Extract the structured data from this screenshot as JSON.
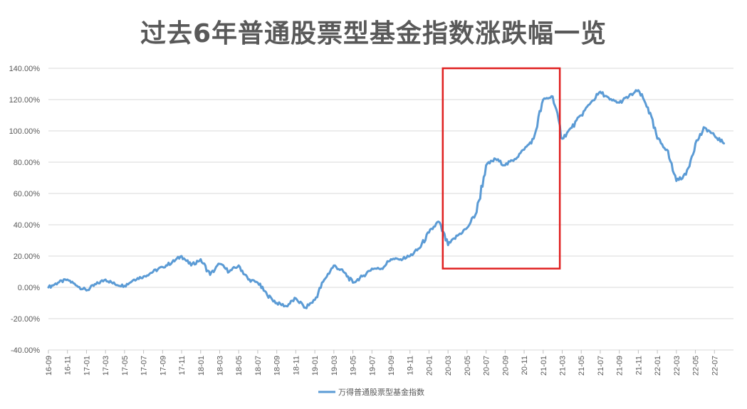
{
  "chart_data": {
    "type": "line",
    "title": "过去6年普通股票型基金指数涨跌幅一览",
    "xlabel": "",
    "ylabel": "",
    "ylim": [
      -0.4,
      1.4
    ],
    "y_ticks": [
      1.4,
      1.2,
      1.0,
      0.8,
      0.6,
      0.4,
      0.2,
      0.0,
      -0.2,
      -0.4
    ],
    "y_tick_labels": [
      "140.00%",
      "120.00%",
      "100.00%",
      "80.00%",
      "60.00%",
      "40.00%",
      "20.00%",
      "0.00%",
      "-20.00%",
      "-40.00%"
    ],
    "x_tick_labels": [
      "16-09",
      "16-11",
      "17-01",
      "17-03",
      "17-05",
      "17-07",
      "17-09",
      "17-11",
      "18-01",
      "18-03",
      "18-05",
      "18-07",
      "18-09",
      "18-11",
      "19-01",
      "19-03",
      "19-05",
      "19-07",
      "19-09",
      "19-11",
      "20-01",
      "20-03",
      "20-05",
      "20-07",
      "20-09",
      "20-11",
      "21-01",
      "21-03",
      "21-05",
      "21-07",
      "21-09",
      "21-11",
      "22-01",
      "22-03",
      "22-05",
      "22-07"
    ],
    "grid": true,
    "legend_position": "bottom",
    "colors": {
      "series": "#5B9BD5",
      "highlight_box": "#E02020",
      "grid": "#D9D9D9",
      "text": "#595959"
    },
    "highlight_range": {
      "x_start": "20-02",
      "x_end": "21-02",
      "y_bottom": 0.12,
      "y_top": 1.4
    },
    "series": [
      {
        "name": "万得普通股票型基金指数",
        "x": [
          "16-09",
          "16-10",
          "16-11",
          "16-12",
          "17-01",
          "17-02",
          "17-03",
          "17-04",
          "17-05",
          "17-06",
          "17-07",
          "17-08",
          "17-09",
          "17-10",
          "17-11",
          "17-12",
          "18-01",
          "18-02",
          "18-03",
          "18-04",
          "18-05",
          "18-06",
          "18-07",
          "18-08",
          "18-09",
          "18-10",
          "18-11",
          "18-12",
          "19-01",
          "19-02",
          "19-03",
          "19-04",
          "19-05",
          "19-06",
          "19-07",
          "19-08",
          "19-09",
          "19-10",
          "19-11",
          "19-12",
          "20-01",
          "20-02",
          "20-03",
          "20-04",
          "20-05",
          "20-06",
          "20-07",
          "20-08",
          "20-09",
          "20-10",
          "20-11",
          "20-12",
          "21-01",
          "21-02",
          "21-03",
          "21-04",
          "21-05",
          "21-06",
          "21-07",
          "21-08",
          "21-09",
          "21-10",
          "21-11",
          "21-12",
          "22-01",
          "22-02",
          "22-03",
          "22-04",
          "22-05",
          "22-06",
          "22-07",
          "22-08"
        ],
        "values": [
          0.0,
          0.03,
          0.05,
          0.01,
          -0.02,
          0.02,
          0.05,
          0.02,
          0.01,
          0.05,
          0.07,
          0.1,
          0.13,
          0.16,
          0.2,
          0.14,
          0.18,
          0.08,
          0.15,
          0.1,
          0.14,
          0.05,
          0.03,
          -0.05,
          -0.1,
          -0.12,
          -0.07,
          -0.13,
          -0.08,
          0.05,
          0.14,
          0.1,
          0.03,
          0.07,
          0.12,
          0.12,
          0.18,
          0.18,
          0.2,
          0.25,
          0.35,
          0.42,
          0.27,
          0.33,
          0.38,
          0.48,
          0.78,
          0.82,
          0.78,
          0.82,
          0.88,
          0.95,
          1.2,
          1.22,
          0.95,
          1.02,
          1.1,
          1.18,
          1.25,
          1.2,
          1.18,
          1.22,
          1.26,
          1.15,
          0.95,
          0.88,
          0.68,
          0.72,
          0.92,
          1.02,
          0.97,
          0.92
        ]
      }
    ]
  }
}
